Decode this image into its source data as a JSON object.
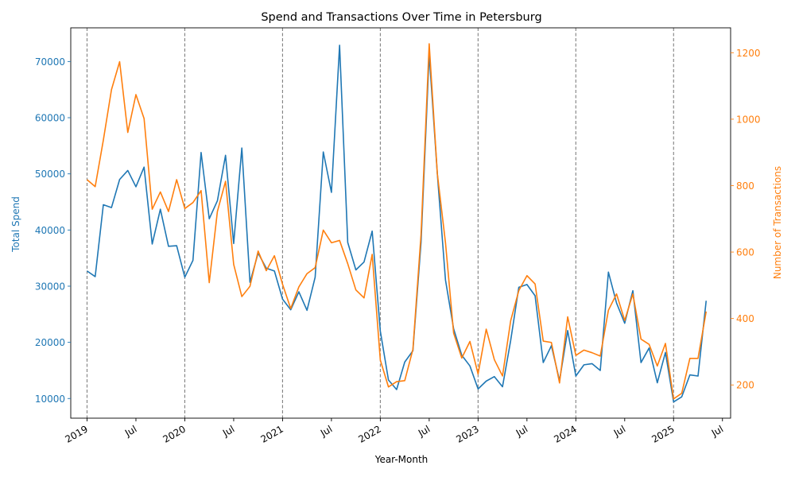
{
  "chart_data": {
    "type": "line",
    "title": "Spend and Transactions Over Time in Petersburg",
    "xlabel": "Year-Month",
    "ylabel_left": "Total Spend",
    "ylabel_right": "Number of Transactions",
    "x_range": [
      "2018-11",
      "2025-08"
    ],
    "y_left_range": [
      6500,
      76000
    ],
    "y_right_range": [
      100,
      1275
    ],
    "y_left_ticks": [
      10000,
      20000,
      30000,
      40000,
      50000,
      60000,
      70000
    ],
    "y_right_ticks": [
      200,
      400,
      600,
      800,
      1000,
      1200
    ],
    "x_ticks": [
      {
        "date": "2019-01",
        "label": "2019"
      },
      {
        "date": "2019-07",
        "label": "Jul"
      },
      {
        "date": "2020-01",
        "label": "2020"
      },
      {
        "date": "2020-07",
        "label": "Jul"
      },
      {
        "date": "2021-01",
        "label": "2021"
      },
      {
        "date": "2021-07",
        "label": "Jul"
      },
      {
        "date": "2022-01",
        "label": "2022"
      },
      {
        "date": "2022-07",
        "label": "Jul"
      },
      {
        "date": "2023-01",
        "label": "2023"
      },
      {
        "date": "2023-07",
        "label": "Jul"
      },
      {
        "date": "2024-01",
        "label": "2024"
      },
      {
        "date": "2024-07",
        "label": "Jul"
      },
      {
        "date": "2025-01",
        "label": "2025"
      },
      {
        "date": "2025-07",
        "label": "Jul"
      }
    ],
    "year_markers": [
      "2019-01",
      "2020-01",
      "2021-01",
      "2022-01",
      "2023-01",
      "2024-01",
      "2025-01"
    ],
    "months": [
      "2019-01",
      "2019-02",
      "2019-03",
      "2019-04",
      "2019-05",
      "2019-06",
      "2019-07",
      "2019-08",
      "2019-09",
      "2019-10",
      "2019-11",
      "2019-12",
      "2020-01",
      "2020-02",
      "2020-03",
      "2020-04",
      "2020-05",
      "2020-06",
      "2020-07",
      "2020-08",
      "2020-09",
      "2020-10",
      "2020-11",
      "2020-12",
      "2021-01",
      "2021-02",
      "2021-03",
      "2021-04",
      "2021-05",
      "2021-06",
      "2021-07",
      "2021-08",
      "2021-09",
      "2021-10",
      "2021-11",
      "2021-12",
      "2022-01",
      "2022-02",
      "2022-03",
      "2022-04",
      "2022-05",
      "2022-06",
      "2022-07",
      "2022-08",
      "2022-09",
      "2022-10",
      "2022-11",
      "2022-12",
      "2023-01",
      "2023-02",
      "2023-03",
      "2023-04",
      "2023-05",
      "2023-06",
      "2023-07",
      "2023-08",
      "2023-09",
      "2023-10",
      "2023-11",
      "2023-12",
      "2024-01",
      "2024-02",
      "2024-03",
      "2024-04",
      "2024-05",
      "2024-06",
      "2024-07",
      "2024-08",
      "2024-09",
      "2024-10",
      "2024-11",
      "2024-12",
      "2025-01",
      "2025-02",
      "2025-03",
      "2025-04",
      "2025-05"
    ],
    "series": [
      {
        "name": "Total Spend",
        "axis": "left",
        "color": "#1f77b4",
        "values": [
          32700,
          31700,
          44500,
          44000,
          49000,
          50600,
          47700,
          51200,
          37500,
          43700,
          37100,
          37200,
          31600,
          34600,
          53800,
          42000,
          45200,
          53300,
          37600,
          54600,
          30700,
          35900,
          33200,
          32700,
          27700,
          25800,
          29000,
          25700,
          31600,
          53900,
          46700,
          72900,
          37800,
          32900,
          34300,
          39800,
          22000,
          13300,
          11600,
          16500,
          18500,
          37800,
          71300,
          50000,
          31100,
          22400,
          17700,
          15800,
          11700,
          13100,
          13900,
          12100,
          20300,
          29800,
          30300,
          28300,
          16400,
          19400,
          13200,
          22100,
          14000,
          16000,
          16200,
          15000,
          32500,
          27000,
          23400,
          29200,
          16400,
          19000,
          12800,
          18200,
          9400,
          10300,
          14200,
          14000,
          27400
        ]
      },
      {
        "name": "Number of Transactions",
        "axis": "right",
        "color": "#ff7f0e",
        "values": [
          818,
          797,
          937,
          1089,
          1173,
          960,
          1074,
          1002,
          729,
          781,
          722,
          818,
          731,
          749,
          785,
          508,
          722,
          813,
          563,
          466,
          497,
          603,
          544,
          589,
          503,
          430,
          495,
          535,
          553,
          666,
          628,
          635,
          565,
          486,
          462,
          593,
          275,
          194,
          210,
          213,
          307,
          653,
          1227,
          836,
          628,
          356,
          281,
          331,
          233,
          368,
          276,
          227,
          393,
          484,
          529,
          504,
          332,
          328,
          206,
          405,
          289,
          305,
          297,
          287,
          425,
          474,
          394,
          474,
          338,
          322,
          257,
          325,
          158,
          175,
          280,
          280,
          421
        ]
      }
    ]
  }
}
